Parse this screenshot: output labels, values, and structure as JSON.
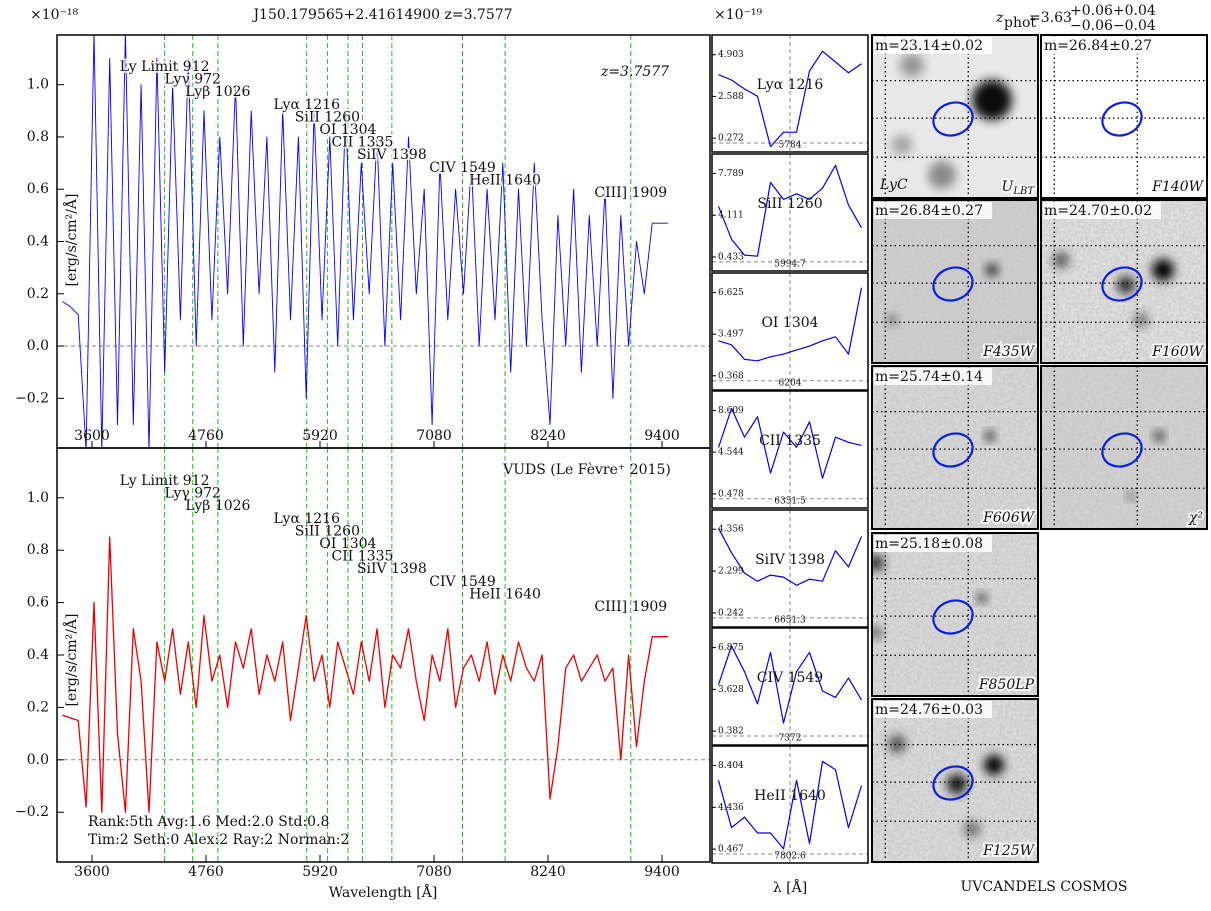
{
  "chart_data": [
    {
      "type": "line",
      "title": "J150.179565+2.41614900 z=3.7577",
      "y_multiplier": "×10⁻¹⁸",
      "ylabel": "[erg/s/cm²/Å]",
      "annotation": "z=3.7577",
      "color": "#0000ff",
      "line_color": "#22bb22",
      "zero_line": true,
      "x": [
        3300,
        3380,
        3460,
        3540,
        3620,
        3700,
        3780,
        3860,
        3940,
        4020,
        4100,
        4180,
        4260,
        4340,
        4420,
        4500,
        4580,
        4660,
        4740,
        4820,
        4900,
        4980,
        5060,
        5140,
        5220,
        5300,
        5380,
        5460,
        5540,
        5620,
        5700,
        5780,
        5860,
        5940,
        6020,
        6100,
        6180,
        6260,
        6340,
        6420,
        6500,
        6580,
        6660,
        6740,
        6820,
        6900,
        6980,
        7060,
        7140,
        7220,
        7300,
        7380,
        7460,
        7540,
        7620,
        7700,
        7780,
        7860,
        7940,
        8020,
        8100,
        8180,
        8260,
        8340,
        8420,
        8500,
        8580,
        8660,
        8740,
        8820,
        8900,
        8980,
        9060,
        9140,
        9220,
        9300,
        9380,
        9460
      ],
      "values": [
        0.17,
        0.15,
        0.12,
        -0.4,
        1.2,
        -0.4,
        1.1,
        -0.3,
        1.2,
        -0.3,
        1.0,
        -0.4,
        1.1,
        -0.1,
        1.0,
        0.1,
        1.1,
        0.0,
        0.9,
        0.1,
        0.8,
        0.2,
        1.0,
        0.0,
        0.9,
        0.2,
        0.8,
        -0.1,
        0.9,
        0.1,
        0.8,
        -0.2,
        0.9,
        0.1,
        0.8,
        0.0,
        0.9,
        0.1,
        0.7,
        0.2,
        0.8,
        0.0,
        0.7,
        0.1,
        0.8,
        0.2,
        0.6,
        -0.3,
        0.7,
        0.1,
        0.6,
        0.2,
        0.7,
        0.0,
        0.6,
        0.1,
        0.7,
        -0.1,
        0.6,
        0.0,
        0.7,
        0.1,
        -0.3,
        0.5,
        0.0,
        0.6,
        -0.1,
        0.5,
        0.0,
        0.6,
        -0.2,
        0.5,
        0.0,
        0.4,
        0.2,
        0.47,
        0.47,
        0.47
      ],
      "xlim": [
        3244,
        9888
      ],
      "ylim": [
        -0.39,
        1.19
      ],
      "xticks": [
        3600,
        4760,
        5920,
        7080,
        8240,
        9400
      ],
      "yticks": [
        {
          "value": -0.2,
          "label": "−0.2"
        },
        {
          "value": 0,
          "label": "0.0"
        },
        0.2,
        0.4,
        0.6,
        0.8,
        {
          "value": 1,
          "label": "1.0"
        }
      ],
      "reference_lines": [
        {
          "label": "Ly Limit 912",
          "wavelength": 4339
        },
        {
          "label": "Lyγ 972",
          "wavelength": 4625
        },
        {
          "label": "Lyβ 1026",
          "wavelength": 4881
        },
        {
          "label": "Lyα 1216",
          "wavelength": 5785
        },
        {
          "label": "SiII 1260",
          "wavelength": 5995
        },
        {
          "label": "OI 1304",
          "wavelength": 6204
        },
        {
          "label": "CII 1335",
          "wavelength": 6352
        },
        {
          "label": "SiIV 1398",
          "wavelength": 6651
        },
        {
          "label": "CIV 1549",
          "wavelength": 7370
        },
        {
          "label": "HeII 1640",
          "wavelength": 7803
        },
        {
          "label": "CIII] 1909",
          "wavelength": 9082
        }
      ]
    },
    {
      "type": "line",
      "ylabel": "[erg/s/cm²/Å]",
      "xlabel": "Wavelength [Å]",
      "annotation": "VUDS (Le Fèvre⁺ 2015)",
      "notes": [
        "Rank:5th Avg:1.6 Med:2.0 Std:0.8",
        "Tim:2 Seth:0 Alex:2 Ray:2 Norman:2"
      ],
      "color": "#ee0000",
      "line_color": "#22bb22",
      "zero_line": true,
      "x": [
        3300,
        3380,
        3460,
        3540,
        3620,
        3700,
        3780,
        3860,
        3940,
        4020,
        4100,
        4180,
        4260,
        4340,
        4420,
        4500,
        4580,
        4660,
        4740,
        4820,
        4900,
        4980,
        5060,
        5140,
        5220,
        5300,
        5380,
        5460,
        5540,
        5620,
        5700,
        5780,
        5860,
        5940,
        6020,
        6100,
        6180,
        6260,
        6340,
        6420,
        6500,
        6580,
        6660,
        6740,
        6820,
        6900,
        6980,
        7060,
        7140,
        7220,
        7300,
        7380,
        7460,
        7540,
        7620,
        7700,
        7780,
        7860,
        7940,
        8020,
        8100,
        8180,
        8260,
        8340,
        8420,
        8500,
        8580,
        8660,
        8740,
        8820,
        8900,
        8980,
        9060,
        9140,
        9220,
        9300,
        9380,
        9460
      ],
      "values": [
        0.17,
        0.16,
        0.15,
        -0.18,
        0.6,
        -0.2,
        0.85,
        0.1,
        -0.2,
        0.5,
        0.3,
        -0.2,
        0.45,
        0.3,
        0.5,
        0.25,
        0.45,
        0.2,
        0.55,
        0.3,
        0.4,
        0.2,
        0.45,
        0.35,
        0.5,
        0.25,
        0.4,
        0.3,
        0.45,
        0.15,
        0.35,
        0.55,
        0.3,
        0.4,
        0.2,
        0.45,
        0.35,
        0.25,
        0.45,
        0.3,
        0.5,
        0.2,
        0.4,
        0.35,
        0.5,
        0.3,
        0.15,
        0.4,
        0.3,
        0.5,
        0.2,
        0.35,
        0.4,
        0.3,
        0.45,
        0.25,
        0.4,
        0.3,
        0.45,
        0.35,
        0.3,
        0.4,
        -0.15,
        0.05,
        0.35,
        0.4,
        0.3,
        0.35,
        0.4,
        0.3,
        0.35,
        0.0,
        0.4,
        0.05,
        0.3,
        0.47,
        0.47,
        0.47
      ],
      "xlim": [
        3244,
        9888
      ],
      "ylim": [
        -0.39,
        1.19
      ],
      "xticks": [
        3600,
        4760,
        5920,
        7080,
        8240,
        9400
      ],
      "yticks": [
        {
          "value": -0.2,
          "label": "−0.2"
        },
        {
          "value": 0,
          "label": "0.0"
        },
        0.2,
        0.4,
        0.6,
        0.8,
        {
          "value": 1,
          "label": "1.0"
        }
      ],
      "reference_lines": [
        {
          "label": "Ly Limit 912",
          "wavelength": 4339
        },
        {
          "label": "Lyγ 972",
          "wavelength": 4625
        },
        {
          "label": "Lyβ 1026",
          "wavelength": 4881
        },
        {
          "label": "Lyα 1216",
          "wavelength": 5785
        },
        {
          "label": "SiII 1260",
          "wavelength": 5995
        },
        {
          "label": "OI 1304",
          "wavelength": 6204
        },
        {
          "label": "CII 1335",
          "wavelength": 6352
        },
        {
          "label": "SiIV 1398",
          "wavelength": 6651
        },
        {
          "label": "CIV 1549",
          "wavelength": 7370
        },
        {
          "label": "HeII 1640",
          "wavelength": 7803
        },
        {
          "label": "CIII] 1909",
          "wavelength": 9082
        }
      ]
    },
    {
      "type": "line",
      "y_multiplier": "×10⁻¹⁹",
      "label": "Lyα 1216",
      "color": "#0000ff",
      "zero_line": true,
      "x": [
        5729,
        5739,
        5749,
        5759,
        5769,
        5779,
        5789,
        5799,
        5809,
        5819,
        5829,
        5839
      ],
      "values": [
        3.8,
        3.5,
        3.0,
        2.6,
        -0.2,
        0.6,
        0.6,
        4.0,
        5.1,
        4.5,
        3.9,
        4.4
      ],
      "xlim": [
        5724,
        5844
      ],
      "ylim": [
        -0.5,
        6.0
      ],
      "xticks": [
        5784
      ],
      "yticks": [
        0.272,
        2.588,
        4.903
      ]
    },
    {
      "type": "line",
      "label": "SiII 1260",
      "color": "#0000ff",
      "zero_line": true,
      "x": [
        5939.7,
        5949.7,
        5959.7,
        5969.7,
        5979.7,
        5989.7,
        5999.7,
        6009.7,
        6019.7,
        6029.7,
        6039.7,
        6049.7
      ],
      "values": [
        4.9,
        2.0,
        0.6,
        0.5,
        7.0,
        5.5,
        6.0,
        5.5,
        6.5,
        8.5,
        5.0,
        3.0
      ],
      "xlim": [
        5934.7,
        6054.7
      ],
      "ylim": [
        -0.8,
        9.5
      ],
      "xticks": [
        5994.7
      ],
      "yticks": [
        0.433,
        4.111,
        7.789
      ]
    },
    {
      "type": "line",
      "label": "OI 1304",
      "color": "#0000ff",
      "zero_line": true,
      "x": [
        6149,
        6159,
        6169,
        6179,
        6189,
        6199,
        6209,
        6219,
        6229,
        6239,
        6249,
        6259
      ],
      "values": [
        3.0,
        2.7,
        1.6,
        1.5,
        1.8,
        2.0,
        2.3,
        2.6,
        3.0,
        3.3,
        2.0,
        7.0
      ],
      "xlim": [
        6144,
        6264
      ],
      "ylim": [
        -0.7,
        8.1
      ],
      "xticks": [
        6204
      ],
      "yticks": [
        0.368,
        3.497,
        6.625
      ]
    },
    {
      "type": "line",
      "label": "CII 1335",
      "color": "#0000ff",
      "zero_line": true,
      "x": [
        6296.5,
        6306.5,
        6316.5,
        6326.5,
        6336.5,
        6346.5,
        6356.5,
        6366.5,
        6376.5,
        6386.5,
        6396.5,
        6406.5
      ],
      "values": [
        5.0,
        8.8,
        6.0,
        8.0,
        2.5,
        6.5,
        5.0,
        7.5,
        2.0,
        6.0,
        5.5,
        5.2
      ],
      "xlim": [
        6291.5,
        6411.5
      ],
      "ylim": [
        -0.9,
        10.5
      ],
      "xticks": [
        6351.5
      ],
      "yticks": [
        0.478,
        4.544,
        8.609
      ]
    },
    {
      "type": "line",
      "label": "SiIV 1398",
      "color": "#0000ff",
      "zero_line": true,
      "x": [
        6596.3,
        6606.3,
        6616.3,
        6626.3,
        6636.3,
        6646.3,
        6656.3,
        6666.3,
        6676.3,
        6686.3,
        6696.3,
        6706.3
      ],
      "values": [
        4.4,
        3.2,
        2.2,
        1.8,
        2.1,
        2.0,
        1.6,
        1.9,
        1.8,
        3.3,
        2.5,
        4.0
      ],
      "xlim": [
        6591.3,
        6711.3
      ],
      "ylim": [
        -0.45,
        5.3
      ],
      "xticks": [
        6651.3
      ],
      "yticks": [
        0.242,
        2.299,
        4.356
      ]
    },
    {
      "type": "line",
      "label": "CIV 1549",
      "color": "#0000ff",
      "zero_line": true,
      "x": [
        7317,
        7327,
        7337,
        7347,
        7357,
        7367,
        7377,
        7387,
        7397,
        7407,
        7417,
        7427
      ],
      "values": [
        4.0,
        7.0,
        5.0,
        2.5,
        6.5,
        1.0,
        5.0,
        6.5,
        3.5,
        3.0,
        4.5,
        2.8
      ],
      "xlim": [
        7312,
        7432
      ],
      "ylim": [
        -0.7,
        8.4
      ],
      "xticks": [
        7372
      ],
      "yticks": [
        0.382,
        3.628,
        6.875
      ]
    },
    {
      "type": "line",
      "label": "HeII 1640",
      "xlabel": "λ [Å]",
      "color": "#0000ff",
      "zero_line": true,
      "x": [
        7747.6,
        7757.6,
        7767.6,
        7777.6,
        7787.6,
        7797.6,
        7807.6,
        7817.6,
        7827.6,
        7837.6,
        7847.6,
        7857.6
      ],
      "values": [
        7.0,
        2.5,
        3.5,
        2.0,
        2.0,
        0.5,
        7.0,
        1.0,
        8.8,
        8.0,
        2.5,
        6.5
      ],
      "xlim": [
        7742.6,
        7862.6
      ],
      "ylim": [
        -0.85,
        10.25
      ],
      "xticks": [
        7802.6
      ],
      "yticks": [
        0.467,
        4.436,
        8.404
      ]
    }
  ],
  "photo_z": {
    "symbol": "z",
    "sub": "phot",
    "value": "=3.63",
    "upper": "+0.06+0.04",
    "lower": "−0.06−0.04"
  },
  "cutouts": [
    {
      "mag": "m=23.14±0.02",
      "filter": "U",
      "filter_sub": "LBT",
      "extra": "LyC"
    },
    {
      "mag": "m=26.84±0.27",
      "filter": "F140W"
    },
    {
      "mag": "m=26.84±0.27",
      "filter": "F435W"
    },
    {
      "mag": "m=24.70±0.02",
      "filter": "F160W"
    },
    {
      "mag": "m=25.74±0.14",
      "filter": "F606W"
    },
    {
      "filter": "χ²"
    },
    {
      "mag": "m=25.18±0.08",
      "filter": "F850LP"
    },
    {
      "mag": "m=24.76±0.03",
      "filter": "F125W"
    }
  ],
  "footer": "UVCANDELS COSMOS"
}
